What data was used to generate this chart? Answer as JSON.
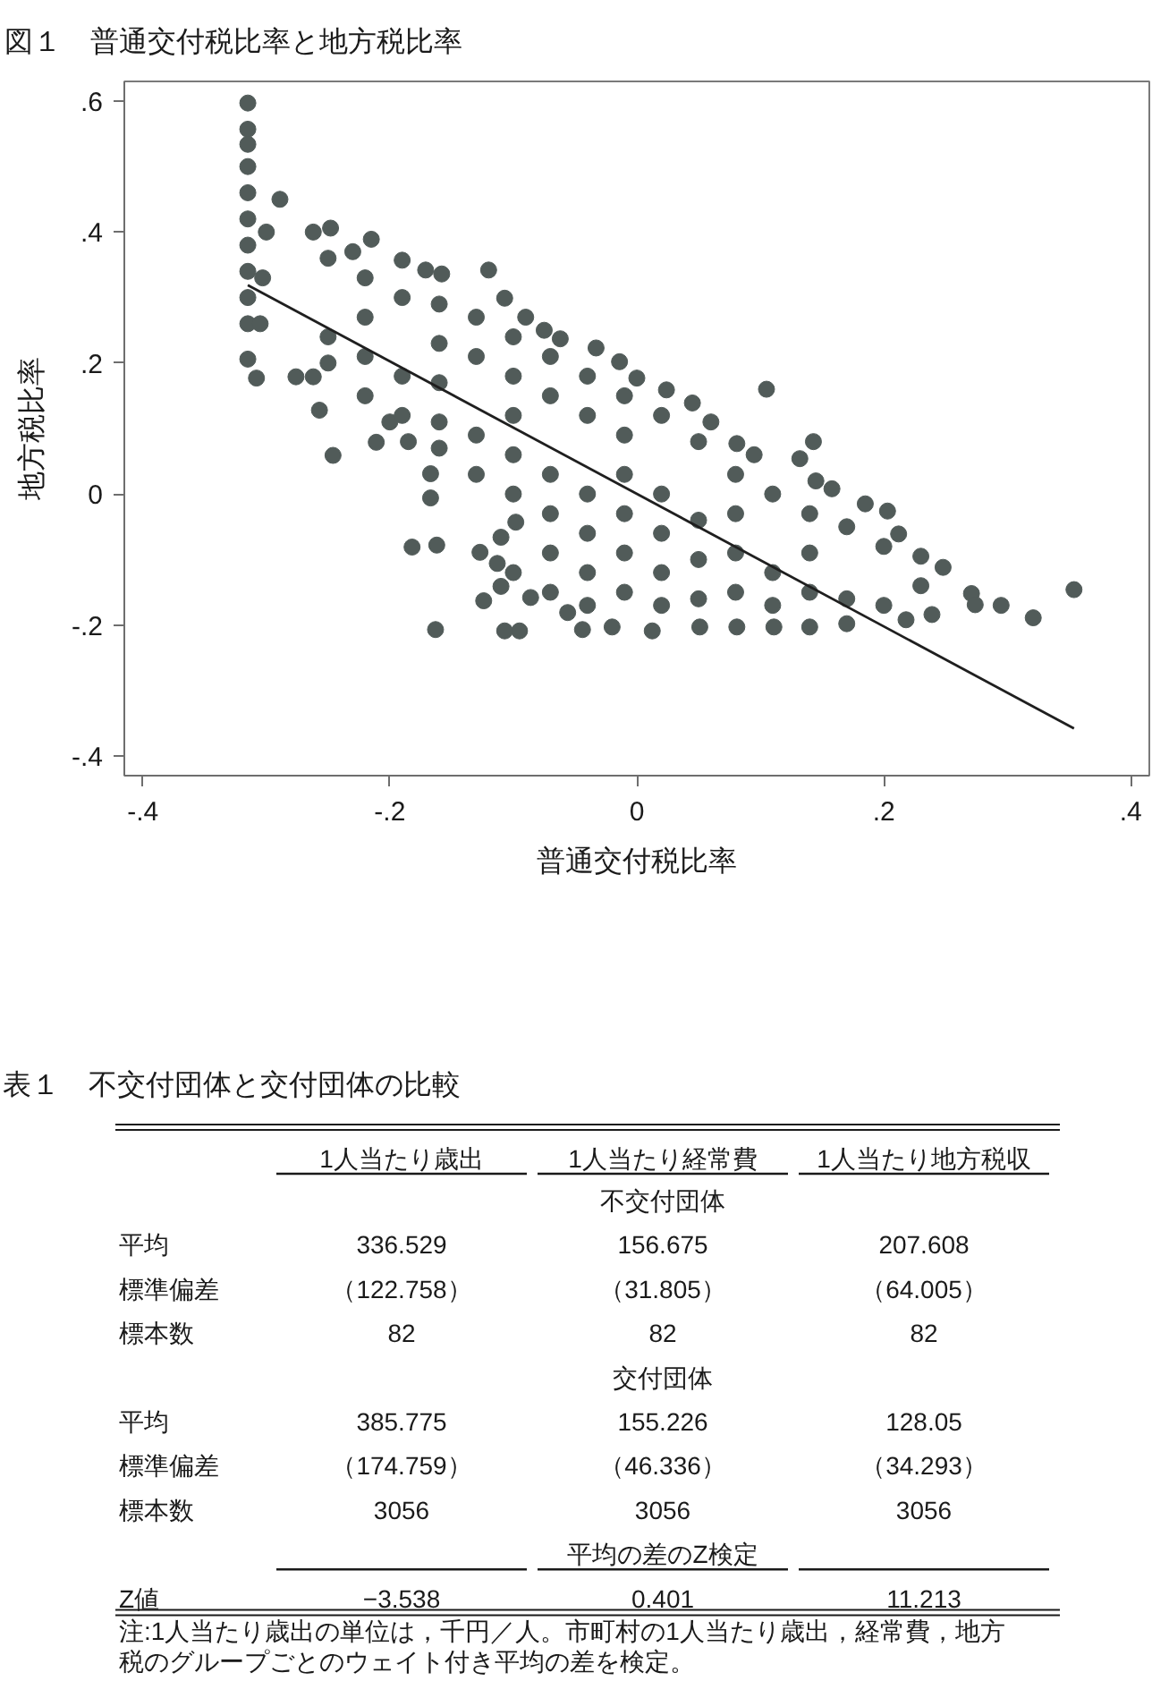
{
  "chart_data": [
    {
      "type": "scatter",
      "title": "図１　普通交付税比率と地方税比率",
      "xlabel": "普通交付税比率",
      "ylabel": "地方税比率",
      "xlim": [
        -0.415,
        0.415
      ],
      "ylim": [
        -0.43,
        0.63
      ],
      "xticks": [
        {
          "value": -0.4,
          "label": "-.4"
        },
        {
          "value": -0.2,
          "label": "-.2"
        },
        0,
        {
          "value": 0.2,
          "label": ".2"
        },
        {
          "value": 0.4,
          "label": ".4"
        }
      ],
      "yticks": [
        {
          "value": -0.4,
          "label": "-.4"
        },
        {
          "value": -0.2,
          "label": "-.2"
        },
        0,
        {
          "value": 0.2,
          "label": ".2"
        },
        {
          "value": 0.4,
          "label": ".4"
        },
        {
          "value": 0.6,
          "label": ".6"
        }
      ],
      "series": [
        {
          "type": "scatter",
          "color": "#515b59",
          "marker": "circle",
          "x": [
            -0.315,
            -0.315,
            -0.315,
            -0.315,
            -0.315,
            -0.315,
            -0.315,
            -0.315,
            -0.315,
            -0.315,
            -0.315,
            -0.308,
            -0.305,
            -0.303,
            -0.3,
            -0.289,
            -0.262,
            -0.248,
            -0.23,
            -0.215,
            -0.19,
            -0.171,
            -0.158,
            -0.12,
            -0.107,
            -0.09,
            -0.075,
            -0.062,
            -0.033,
            -0.014,
            0.0,
            0.024,
            0.045,
            0.06,
            0.081,
            0.095,
            0.105,
            0.143,
            0.132,
            0.145,
            0.158,
            0.185,
            0.203,
            0.212,
            0.23,
            0.248,
            0.271,
            0.295,
            0.321,
            0.354,
            0.274,
            0.239,
            0.218,
            0.17,
            0.14,
            0.111,
            0.081,
            0.051,
            0.0125,
            -0.02,
            -0.044,
            -0.056,
            -0.086,
            -0.095,
            -0.107,
            -0.124,
            -0.11,
            -0.113,
            -0.127,
            -0.11,
            -0.098,
            -0.163,
            -0.182,
            -0.162,
            -0.167,
            -0.167,
            -0.211,
            -0.246,
            -0.257,
            -0.276,
            -0.262,
            -0.2,
            -0.185,
            -0.25,
            -0.25,
            -0.25,
            -0.22,
            -0.22,
            -0.22,
            -0.22,
            -0.19,
            -0.19,
            -0.19,
            -0.16,
            -0.16,
            -0.16,
            -0.16,
            -0.16,
            -0.13,
            -0.13,
            -0.13,
            -0.13,
            -0.1,
            -0.1,
            -0.1,
            -0.1,
            -0.1,
            -0.1,
            -0.07,
            -0.07,
            -0.07,
            -0.07,
            -0.07,
            -0.07,
            -0.04,
            -0.04,
            -0.04,
            -0.04,
            -0.04,
            -0.04,
            -0.01,
            -0.01,
            -0.01,
            -0.01,
            -0.01,
            -0.01,
            0.02,
            0.02,
            0.02,
            0.02,
            0.02,
            0.05,
            0.05,
            0.05,
            0.05,
            0.08,
            0.08,
            0.08,
            0.08,
            0.11,
            0.11,
            0.11,
            0.14,
            0.14,
            0.14,
            0.17,
            0.17,
            0.2,
            0.2,
            0.23
          ],
          "values": [
            0.597,
            0.557,
            0.534,
            0.5,
            0.46,
            0.42,
            0.38,
            0.34,
            0.3,
            0.26,
            0.206,
            0.177,
            0.26,
            0.33,
            0.4,
            0.45,
            0.4,
            0.406,
            0.37,
            0.389,
            0.357,
            0.342,
            0.336,
            0.342,
            0.299,
            0.27,
            0.25,
            0.237,
            0.223,
            0.202,
            0.177,
            0.159,
            0.139,
            0.11,
            0.077,
            0.06,
            0.16,
            0.08,
            0.054,
            0.02,
            0.008,
            -0.015,
            -0.026,
            -0.061,
            -0.095,
            -0.112,
            -0.152,
            -0.17,
            -0.189,
            -0.146,
            -0.169,
            -0.184,
            -0.192,
            -0.198,
            -0.203,
            -0.203,
            -0.203,
            -0.203,
            -0.209,
            -0.203,
            -0.207,
            -0.181,
            -0.158,
            -0.209,
            -0.209,
            -0.163,
            -0.141,
            -0.106,
            -0.089,
            -0.066,
            -0.043,
            -0.207,
            -0.081,
            -0.078,
            -0.006,
            0.031,
            0.079,
            0.059,
            0.128,
            0.179,
            0.179,
            0.11,
            0.08,
            0.36,
            0.24,
            0.2,
            0.33,
            0.27,
            0.21,
            0.15,
            0.3,
            0.18,
            0.12,
            0.29,
            0.23,
            0.17,
            0.11,
            0.07,
            0.27,
            0.21,
            0.09,
            0.03,
            0.24,
            0.18,
            0.12,
            0.06,
            0.0,
            -0.12,
            0.21,
            0.15,
            0.03,
            -0.03,
            -0.09,
            -0.15,
            0.18,
            0.12,
            0.0,
            -0.06,
            -0.12,
            -0.17,
            0.15,
            0.09,
            0.03,
            -0.03,
            -0.09,
            -0.15,
            0.12,
            0.0,
            -0.06,
            -0.12,
            -0.17,
            0.08,
            -0.04,
            -0.1,
            -0.16,
            0.03,
            -0.03,
            -0.09,
            -0.15,
            0.0,
            -0.12,
            -0.17,
            -0.03,
            -0.09,
            -0.15,
            -0.05,
            -0.16,
            -0.08,
            -0.17,
            -0.14
          ]
        },
        {
          "type": "line",
          "color": "#1f1f1f",
          "x": [
            -0.315,
            0.354
          ],
          "values": [
            0.319,
            -0.358
          ]
        }
      ]
    },
    {
      "type": "other",
      "title": "表１　不交付団体と交付団体の比較",
      "categories": [
        "1人当たり歳出",
        "1人当たり経常費",
        "1人当たり地方税収"
      ],
      "series": [
        {
          "name": "平均",
          "values": [
            336.529,
            156.675,
            207.608
          ],
          "value_labels": [
            "336.529",
            "156.675",
            "207.608"
          ]
        },
        {
          "name": "標準偏差",
          "values": [
            122.758,
            31.805,
            64.005
          ],
          "value_labels": [
            "（122.758）",
            "（31.805）",
            "（64.005）"
          ]
        },
        {
          "name": "標本数",
          "values": [
            82,
            82,
            82
          ],
          "value_labels": [
            "82",
            "82",
            "82"
          ]
        },
        {
          "name": "平均",
          "values": [
            385.775,
            155.226,
            128.05
          ],
          "value_labels": [
            "385.775",
            "155.226",
            "128.05"
          ]
        },
        {
          "name": "標準偏差",
          "values": [
            174.759,
            46.336,
            34.293
          ],
          "value_labels": [
            "（174.759）",
            "（46.336）",
            "（34.293）"
          ]
        },
        {
          "name": "標本数",
          "values": [
            3056,
            3056,
            3056
          ],
          "value_labels": [
            "3056",
            "3056",
            "3056"
          ]
        },
        {
          "name": "Z値",
          "values": [
            -3.538,
            0.401,
            11.213
          ],
          "value_labels": [
            "−3.538",
            "0.401",
            "11.213"
          ]
        }
      ],
      "annotations": [
        "不交付団体",
        "交付団体",
        "平均の差のZ検定",
        "注:1人当たり歳出の単位は，千円／人。市町村の1人当たり歳出，経常費，地方税のグループごとのウェイト付き平均の差を検定。"
      ]
    }
  ]
}
